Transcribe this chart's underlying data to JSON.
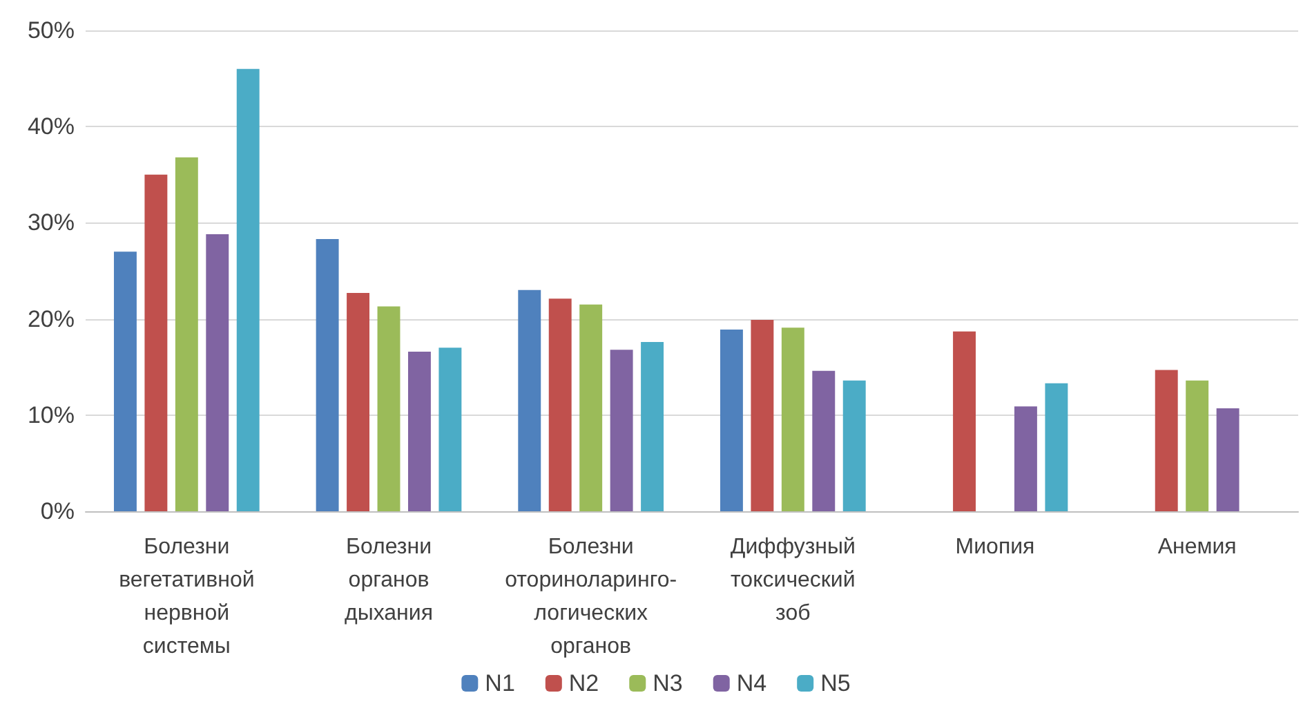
{
  "chart_data": {
    "type": "bar",
    "categories": [
      "Болезни\nвегетативной\nнервной\nсистемы",
      "Болезни\nорганов\nдыхания",
      "Болезни\nоториноларинго-\nлогических\nорганов",
      "Диффузный\nтоксический\nзоб",
      "Миопия",
      "Анемия"
    ],
    "series": [
      {
        "name": "N1",
        "color": "#4f81bd",
        "values": [
          27.0,
          28.3,
          23.0,
          18.9,
          null,
          null
        ]
      },
      {
        "name": "N2",
        "color": "#c0504d",
        "values": [
          35.0,
          22.7,
          22.1,
          19.9,
          18.7,
          14.7
        ]
      },
      {
        "name": "N3",
        "color": "#9bbb59",
        "values": [
          36.8,
          21.3,
          21.5,
          19.1,
          null,
          13.6
        ]
      },
      {
        "name": "N4",
        "color": "#8064a2",
        "values": [
          28.8,
          16.6,
          16.8,
          14.6,
          10.9,
          10.7
        ]
      },
      {
        "name": "N5",
        "color": "#4bacc6",
        "values": [
          46.0,
          17.0,
          17.6,
          13.6,
          13.3,
          null
        ]
      }
    ],
    "ylim": [
      0,
      50
    ],
    "yticks": [
      {
        "value": 0,
        "label": "0%"
      },
      {
        "value": 10,
        "label": "10%"
      },
      {
        "value": 20,
        "label": "20%"
      },
      {
        "value": 30,
        "label": "30%"
      },
      {
        "value": 40,
        "label": "40%"
      },
      {
        "value": 50,
        "label": "50%"
      }
    ],
    "grid": "y",
    "legend": "bottom"
  }
}
